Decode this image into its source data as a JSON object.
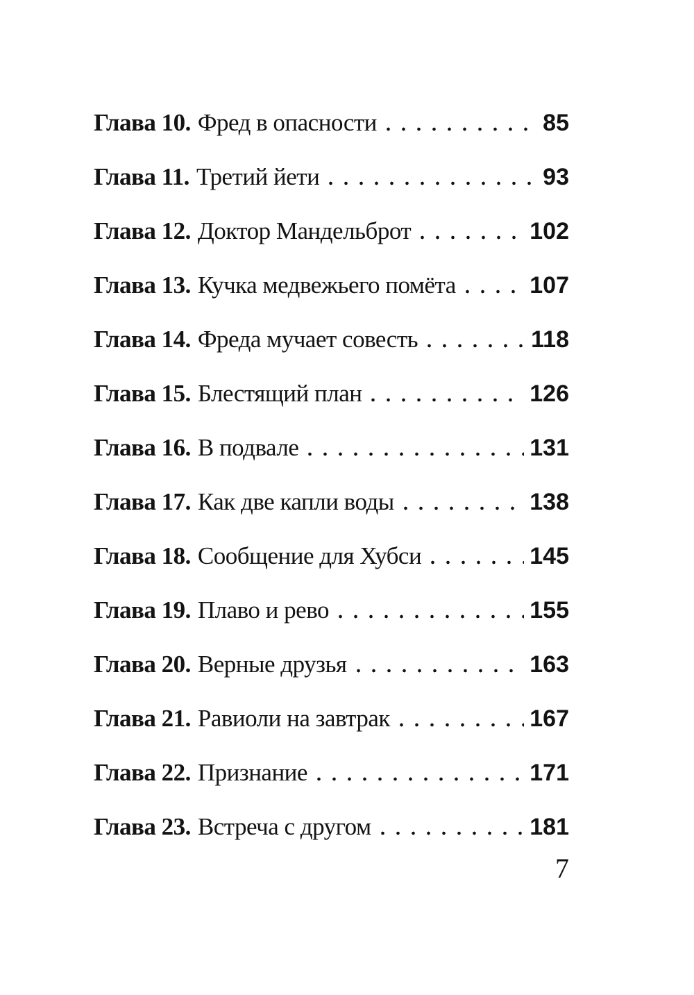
{
  "toc": {
    "entries": [
      {
        "label": "Глава 10.",
        "title": "Фред в опасности",
        "page": "85"
      },
      {
        "label": "Глава 11.",
        "title": "Третий йети",
        "page": "93"
      },
      {
        "label": "Глава 12.",
        "title": "Доктор Мандельброт",
        "page": "102"
      },
      {
        "label": "Глава 13.",
        "title": "Кучка медвежьего помёта",
        "page": "107"
      },
      {
        "label": "Глава 14.",
        "title": "Фреда мучает совесть",
        "page": "118"
      },
      {
        "label": "Глава 15.",
        "title": "Блестящий план",
        "page": "126"
      },
      {
        "label": "Глава 16.",
        "title": "В подвале",
        "page": "131"
      },
      {
        "label": "Глава 17.",
        "title": "Как две капли воды",
        "page": "138"
      },
      {
        "label": "Глава 18.",
        "title": "Сообщение для Хубси",
        "page": "145"
      },
      {
        "label": "Глава 19.",
        "title": "Плаво и рево",
        "page": "155"
      },
      {
        "label": "Глава 20.",
        "title": "Верные друзья",
        "page": "163"
      },
      {
        "label": "Глава 21.",
        "title": "Равиоли на завтрак",
        "page": "167"
      },
      {
        "label": "Глава 22.",
        "title": "Признание",
        "page": "171"
      },
      {
        "label": "Глава 23.",
        "title": "Встреча с другом",
        "page": "181"
      }
    ],
    "folio": "7"
  },
  "colors": {
    "text": "#131313",
    "background": "#ffffff"
  }
}
